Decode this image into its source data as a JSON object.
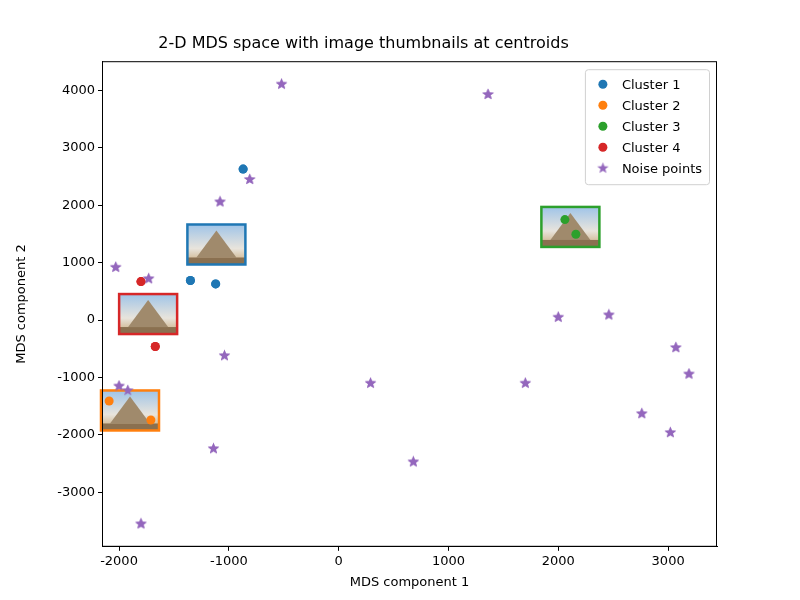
{
  "chart_data": {
    "type": "scatter",
    "title": "2-D MDS space with image thumbnails at centroids",
    "x_label": "MDS component 1",
    "y_label": "MDS component 2",
    "xlim": [
      -2155,
      3445
    ],
    "ylim": [
      -3950,
      4510
    ],
    "xticks": [
      -2000,
      -1000,
      0,
      1000,
      2000,
      3000
    ],
    "yticks": [
      -3000,
      -2000,
      -1000,
      0,
      1000,
      2000,
      3000,
      4000
    ],
    "grid": false,
    "legend": "upper right",
    "series": [
      {
        "name": "Cluster 1",
        "color": "#1f77b4",
        "marker": "circle",
        "x": [
          -870,
          -1350,
          -1120
        ],
        "y": [
          2630,
          690,
          630
        ]
      },
      {
        "name": "Cluster 2",
        "color": "#ff7f0e",
        "marker": "circle",
        "x": [
          -2090,
          -1710
        ],
        "y": [
          -1410,
          -1740
        ]
      },
      {
        "name": "Cluster 3",
        "color": "#2ca02c",
        "marker": "circle",
        "x": [
          2060,
          2160
        ],
        "y": [
          1750,
          1495
        ]
      },
      {
        "name": "Cluster 4",
        "color": "#d62728",
        "marker": "circle",
        "x": [
          -1800,
          -1670
        ],
        "y": [
          670,
          -460
        ]
      },
      {
        "name": "Noise points",
        "color": "#9467bd",
        "marker": "star",
        "x": [
          -2030,
          -1730,
          -520,
          -810,
          -1080,
          -1040,
          -2000,
          -1920,
          -1140,
          -1800,
          290,
          680,
          1360,
          1700,
          2000,
          2460,
          3070,
          3190,
          2760,
          3020
        ],
        "y": [
          920,
          720,
          4110,
          2450,
          2060,
          -620,
          -1150,
          -1230,
          -2240,
          -3550,
          -1100,
          -2470,
          3930,
          -1100,
          50,
          90,
          -480,
          -940,
          -1630,
          -1960
        ]
      }
    ]
  }
}
